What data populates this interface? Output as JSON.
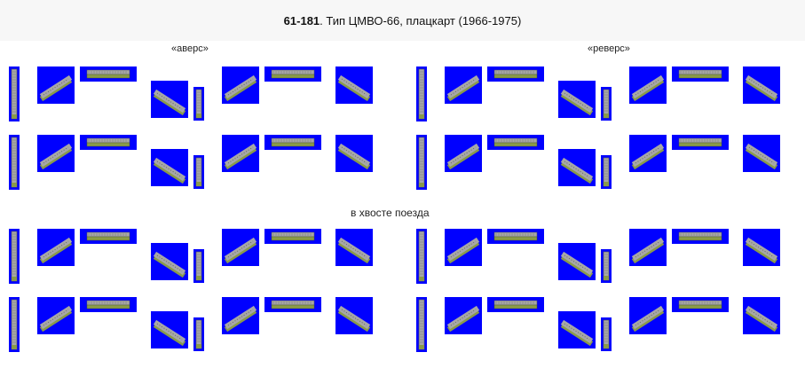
{
  "title": {
    "code": "61-181",
    "text": ". Тип ЦМВО-66, плацкарт (1966-1975)"
  },
  "labels": {
    "avers": "«аверс»",
    "revers": "«реверс»",
    "tail": "в хвосте поезда"
  },
  "sprite_background": "#0000ff",
  "car_body_color": "#8a9a4a",
  "car_roof_color": "#a7a7a7",
  "sprite_views": [
    "vertical-north",
    "diagonal-ne",
    "horizontal-east",
    "diagonal-se",
    "vertical-south",
    "diagonal-sw",
    "horizontal-west",
    "diagonal-nw"
  ]
}
